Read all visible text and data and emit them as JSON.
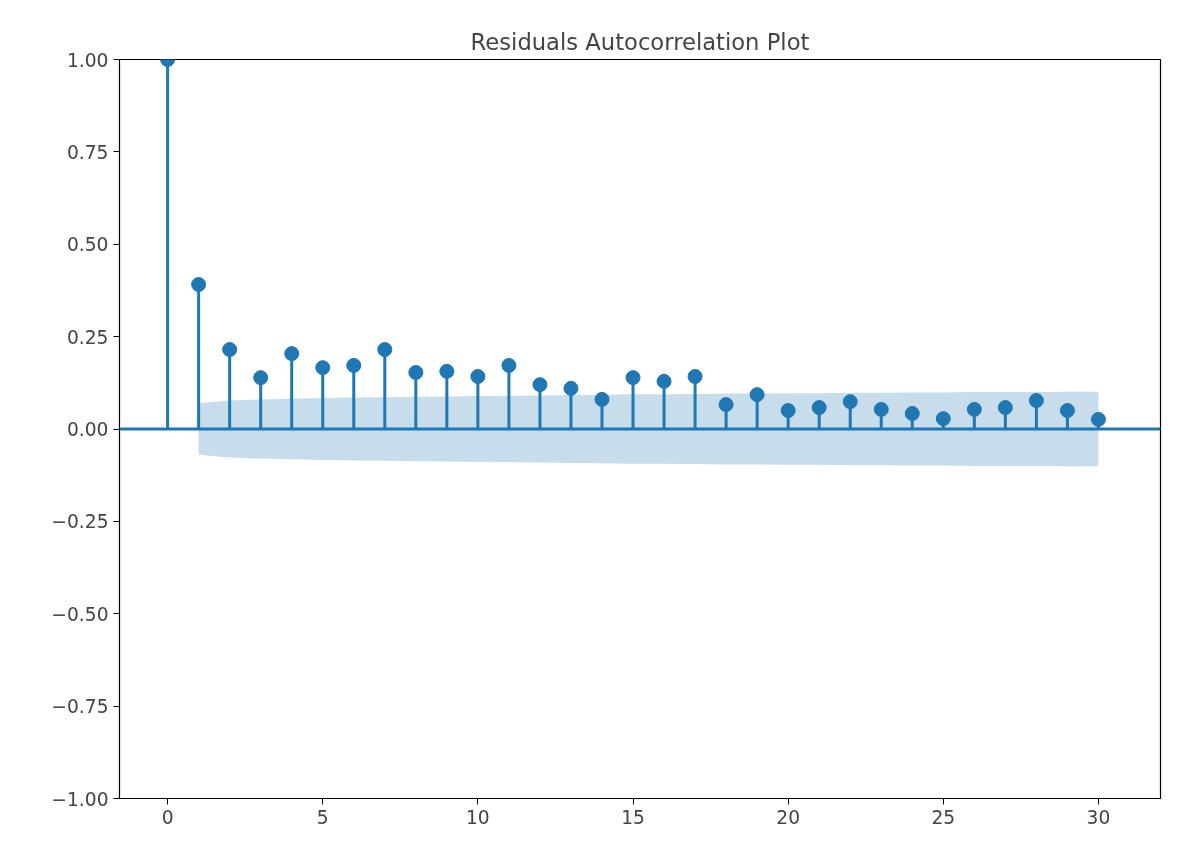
{
  "chart_data": {
    "type": "lollipop",
    "title": "Residuals Autocorrelation Plot",
    "x": [
      0,
      1,
      2,
      3,
      4,
      5,
      6,
      7,
      8,
      9,
      10,
      11,
      12,
      13,
      14,
      15,
      16,
      17,
      18,
      19,
      20,
      21,
      22,
      23,
      24,
      25,
      26,
      27,
      28,
      29,
      30
    ],
    "series": [
      {
        "color": "#1f77b4",
        "values": [
          1.0,
          0.391,
          0.215,
          0.139,
          0.204,
          0.166,
          0.172,
          0.215,
          0.153,
          0.156,
          0.142,
          0.172,
          0.12,
          0.11,
          0.08,
          0.139,
          0.129,
          0.142,
          0.066,
          0.093,
          0.05,
          0.058,
          0.074,
          0.053,
          0.042,
          0.028,
          0.053,
          0.058,
          0.077,
          0.05,
          0.026
        ],
        "lower": [
          null,
          -0.07,
          -0.077,
          -0.08,
          -0.082,
          -0.084,
          -0.085,
          -0.086,
          -0.087,
          -0.088,
          -0.089,
          -0.09,
          -0.091,
          -0.092,
          -0.093,
          -0.094,
          -0.094,
          -0.095,
          -0.096,
          -0.096,
          -0.097,
          -0.097,
          -0.098,
          -0.098,
          -0.099,
          -0.099,
          -0.1,
          -0.1,
          -0.1,
          -0.101,
          -0.101
        ],
        "upper": [
          null,
          0.07,
          0.077,
          0.08,
          0.082,
          0.084,
          0.085,
          0.086,
          0.087,
          0.088,
          0.089,
          0.09,
          0.091,
          0.092,
          0.093,
          0.094,
          0.094,
          0.095,
          0.096,
          0.096,
          0.097,
          0.097,
          0.098,
          0.098,
          0.099,
          0.099,
          0.1,
          0.1,
          0.1,
          0.101,
          0.101
        ]
      }
    ],
    "ref_lines": [
      {
        "axis": "y",
        "value": 0,
        "color": "#1f77b4"
      }
    ],
    "marker": "circle",
    "xlim": [
      -1.55,
      32
    ],
    "ylim": [
      -1.0,
      1.0
    ],
    "xticks": [
      0,
      5,
      10,
      15,
      20,
      25,
      30
    ],
    "yticks": [
      {
        "value": -1.0,
        "label": "−1.00"
      },
      {
        "value": -0.75,
        "label": "−0.75"
      },
      {
        "value": -0.5,
        "label": "−0.50"
      },
      {
        "value": -0.25,
        "label": "−0.25"
      },
      {
        "value": 0.0,
        "label": "0.00"
      },
      {
        "value": 0.25,
        "label": "0.25"
      },
      {
        "value": 0.5,
        "label": "0.50"
      },
      {
        "value": 0.75,
        "label": "0.75"
      },
      {
        "value": 1.0,
        "label": "1.00"
      }
    ],
    "grid": false
  }
}
